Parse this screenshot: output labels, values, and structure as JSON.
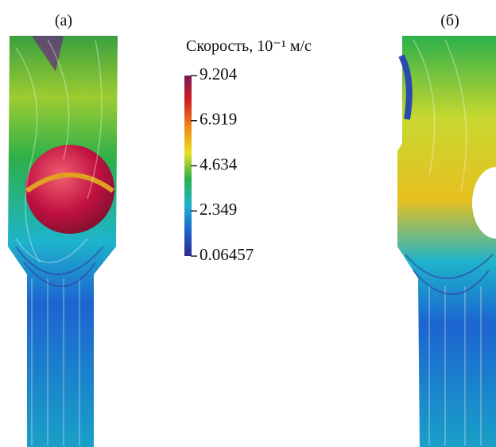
{
  "panels": [
    {
      "label": "(а)"
    },
    {
      "label": "(б)"
    }
  ],
  "colorbar": {
    "title": "Скорость, 10⁻¹ м/с",
    "range": [
      0.06457,
      9.204
    ],
    "ticks": [
      9.204,
      6.919,
      4.634,
      2.349,
      0.06457
    ],
    "colors": [
      "#2a2a8a",
      "#1c64d0",
      "#1eb4cc",
      "#2cb04a",
      "#e6e020",
      "#f08a1a",
      "#d42020",
      "#7a1a50"
    ]
  }
}
